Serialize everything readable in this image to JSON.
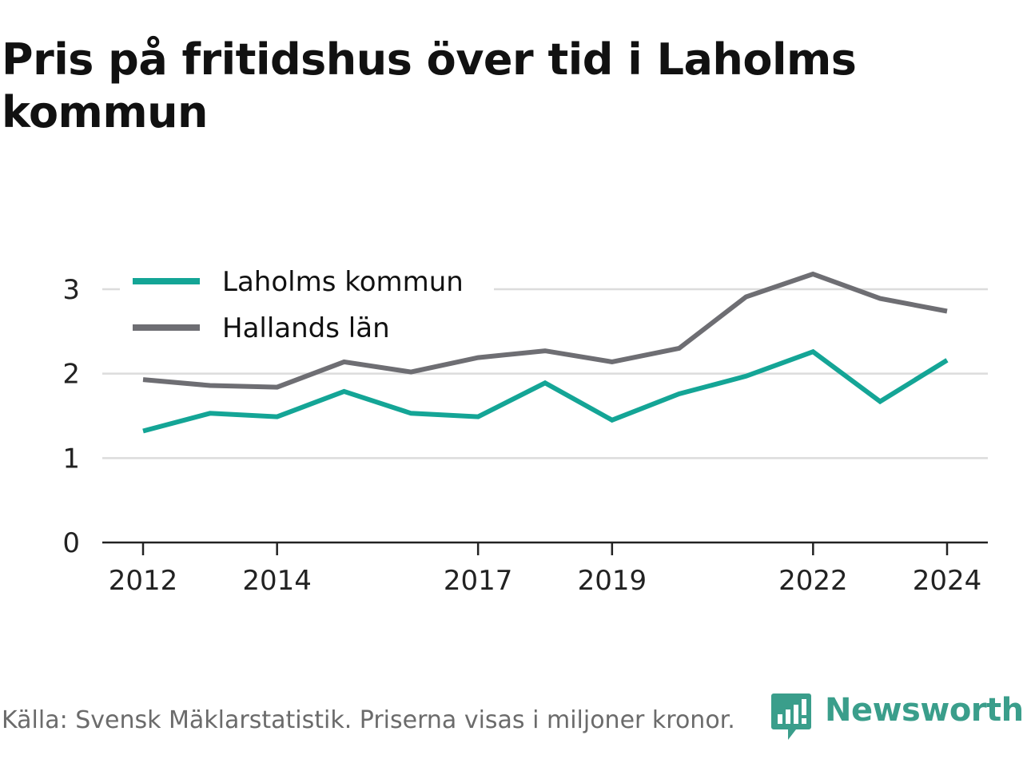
{
  "title": "Pris på fritidshus över tid i Laholms kommun",
  "footer": {
    "source": "Källa: Svensk Mäklarstatistik. Priserna visas i miljoner kronor."
  },
  "logo": {
    "text": "Newsworthy",
    "color": "#3a9e8b",
    "icon": "bar-chart-speech-bubble-icon"
  },
  "chart_data": {
    "type": "line",
    "title": "Pris på fritidshus över tid i Laholms kommun",
    "xlabel": "",
    "ylabel": "",
    "x": [
      2012,
      2013,
      2014,
      2015,
      2016,
      2017,
      2018,
      2019,
      2020,
      2021,
      2022,
      2023,
      2024
    ],
    "x_tick_labels": [
      "2012",
      "2014",
      "2017",
      "2019",
      "2022",
      "2024"
    ],
    "y_ticks": [
      0,
      1,
      2,
      3
    ],
    "ylim": [
      0,
      3.3
    ],
    "grid": true,
    "legend_position": "top-left",
    "series": [
      {
        "name": "Laholms kommun",
        "color": "#14a596",
        "values": [
          1.32,
          1.53,
          1.49,
          1.79,
          1.53,
          1.49,
          1.89,
          1.45,
          1.76,
          1.97,
          2.26,
          1.67,
          2.16
        ]
      },
      {
        "name": "Hallands län",
        "color": "#6e6e73",
        "values": [
          1.93,
          1.86,
          1.84,
          2.14,
          2.02,
          2.19,
          2.27,
          2.14,
          2.3,
          2.91,
          3.18,
          2.89,
          2.74
        ]
      }
    ]
  }
}
